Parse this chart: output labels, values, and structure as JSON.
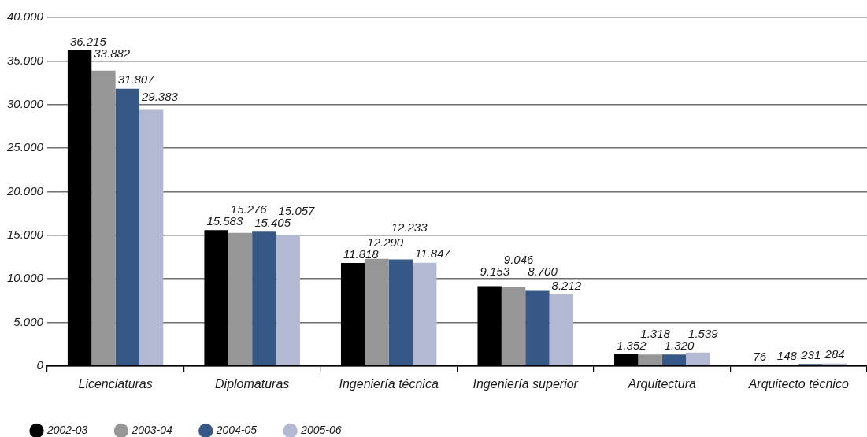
{
  "chart_data": {
    "type": "bar",
    "categories": [
      "Licenciaturas",
      "Diplomaturas",
      "Ingeniería técnica",
      "Ingeniería superior",
      "Arquitectura",
      "Arquitecto técnico"
    ],
    "series": [
      {
        "name": "2002-03",
        "color": "#000000",
        "values": [
          36215,
          15583,
          11818,
          9153,
          1352,
          76
        ],
        "value_labels": [
          "36.215",
          "15.583",
          "11.818",
          "9.153",
          "1.352",
          "76"
        ]
      },
      {
        "name": "2003-04",
        "color": "#969696",
        "values": [
          33882,
          15276,
          12290,
          9046,
          1318,
          148
        ],
        "value_labels": [
          "33.882",
          "15.276",
          "12.290",
          "9.046",
          "1.318",
          "148"
        ]
      },
      {
        "name": "2004-05",
        "color": "#355887",
        "values": [
          31807,
          15405,
          12233,
          8700,
          1320,
          231
        ],
        "value_labels": [
          "31.807",
          "15.405",
          "12.233",
          "8.700",
          "1.320",
          "231"
        ]
      },
      {
        "name": "2005-06",
        "color": "#b3b8d3",
        "values": [
          29383,
          15057,
          11847,
          8212,
          1539,
          284
        ],
        "value_labels": [
          "29.383",
          "15.057",
          "11.847",
          "8.212",
          "1.539",
          "284"
        ]
      }
    ],
    "ylim": [
      0,
      40000
    ],
    "yticks": [
      0,
      {
        "value": 5000,
        "label": "5.000"
      },
      {
        "value": 10000,
        "label": "10.000"
      },
      {
        "value": 15000,
        "label": "15.000"
      },
      {
        "value": 20000,
        "label": "20.000"
      },
      {
        "value": 25000,
        "label": "25.000"
      },
      {
        "value": 30000,
        "label": "30.000"
      },
      {
        "value": 35000,
        "label": "35.000"
      },
      {
        "value": 40000,
        "label": "40.000"
      }
    ],
    "grid": "y",
    "legend": "bottom left"
  }
}
